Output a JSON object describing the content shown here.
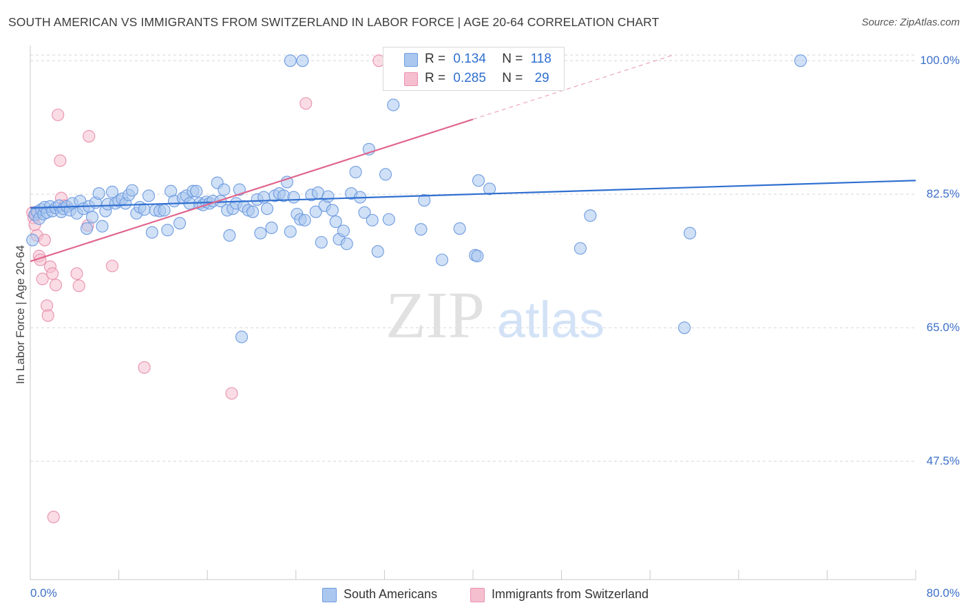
{
  "title": "SOUTH AMERICAN VS IMMIGRANTS FROM SWITZERLAND IN LABOR FORCE | AGE 20-64 CORRELATION CHART",
  "source": "Source: ZipAtlas.com",
  "watermark": {
    "zip": "ZIP",
    "atlas": "atlas"
  },
  "legend_top": {
    "rows": [
      {
        "r_label": "R =",
        "r_value": "0.134",
        "n_label": "N =",
        "n_value": "118",
        "color": "#a9c6f0"
      },
      {
        "r_label": "R =",
        "r_value": "0.285",
        "n_label": "N =",
        "n_value": "29",
        "color": "#f6b6c8"
      }
    ]
  },
  "legend_bottom": {
    "south_americans": "South Americans",
    "immigrants_switzerland": "Immigrants from Switzerland"
  },
  "colors": {
    "blue_fill": "#aac7ef",
    "blue_stroke": "#6d9be0",
    "blue_line": "#2f6fd0",
    "pink_fill": "#f6bfd0",
    "pink_stroke": "#e890ad",
    "pink_line": "#e0668c",
    "grid": "#d5d5d5",
    "tick_text": "#3b6fc8"
  },
  "chart_data": {
    "type": "scatter",
    "title": "SOUTH AMERICAN VS IMMIGRANTS FROM SWITZERLAND IN LABOR FORCE | AGE 20-64 CORRELATION CHART",
    "xlabel": "",
    "ylabel": "In Labor Force | Age 20-64",
    "xlim": [
      0,
      80
    ],
    "ylim": [
      32,
      102
    ],
    "x_tick_labels": [
      "0.0%",
      "80.0%"
    ],
    "y_ticks": [
      47.5,
      65.0,
      82.5,
      100.0
    ],
    "y_tick_labels": [
      "47.5%",
      "65.0%",
      "82.5%",
      "100.0%"
    ],
    "grid": true,
    "legend_position": "bottom",
    "series": [
      {
        "name": "South Americans",
        "r": 0.134,
        "n": 118,
        "trend": {
          "x": [
            0,
            80
          ],
          "y": [
            80.7,
            84.3
          ],
          "dashed_after": null
        },
        "points": [
          [
            0.2,
            76.5
          ],
          [
            0.4,
            79.8
          ],
          [
            0.6,
            80.2
          ],
          [
            0.8,
            79.3
          ],
          [
            1.0,
            80.5
          ],
          [
            1.2,
            79.9
          ],
          [
            1.3,
            80.8
          ],
          [
            1.5,
            80.1
          ],
          [
            1.8,
            80.9
          ],
          [
            2.0,
            80.3
          ],
          [
            2.3,
            80.7
          ],
          [
            2.6,
            81.0
          ],
          [
            2.8,
            80.2
          ],
          [
            3.0,
            80.6
          ],
          [
            3.3,
            80.9
          ],
          [
            3.6,
            80.4
          ],
          [
            3.8,
            81.3
          ],
          [
            4.2,
            80.0
          ],
          [
            4.5,
            81.6
          ],
          [
            4.8,
            80.6
          ],
          [
            5.1,
            78.0
          ],
          [
            5.3,
            80.9
          ],
          [
            5.6,
            79.5
          ],
          [
            5.9,
            81.4
          ],
          [
            6.2,
            82.6
          ],
          [
            6.5,
            78.3
          ],
          [
            6.8,
            80.3
          ],
          [
            7.0,
            81.2
          ],
          [
            7.4,
            82.8
          ],
          [
            7.7,
            81.3
          ],
          [
            8.0,
            81.6
          ],
          [
            8.3,
            81.9
          ],
          [
            8.6,
            81.3
          ],
          [
            8.9,
            82.4
          ],
          [
            9.2,
            83.0
          ],
          [
            9.6,
            80.0
          ],
          [
            9.9,
            80.8
          ],
          [
            10.3,
            80.5
          ],
          [
            10.7,
            82.3
          ],
          [
            11.0,
            77.5
          ],
          [
            11.3,
            80.4
          ],
          [
            11.7,
            80.3
          ],
          [
            12.1,
            80.4
          ],
          [
            12.4,
            77.8
          ],
          [
            12.7,
            82.9
          ],
          [
            13.0,
            81.6
          ],
          [
            13.5,
            78.7
          ],
          [
            13.8,
            82.0
          ],
          [
            14.1,
            82.3
          ],
          [
            14.4,
            81.3
          ],
          [
            14.7,
            82.9
          ],
          [
            15.0,
            82.9
          ],
          [
            15.3,
            81.3
          ],
          [
            15.6,
            81.1
          ],
          [
            15.9,
            81.5
          ],
          [
            16.2,
            81.3
          ],
          [
            16.5,
            81.6
          ],
          [
            16.9,
            84.0
          ],
          [
            17.2,
            81.6
          ],
          [
            17.5,
            83.1
          ],
          [
            17.8,
            80.4
          ],
          [
            18.0,
            77.1
          ],
          [
            18.3,
            80.6
          ],
          [
            18.6,
            81.3
          ],
          [
            18.9,
            83.1
          ],
          [
            19.3,
            80.9
          ],
          [
            19.7,
            80.4
          ],
          [
            20.1,
            80.2
          ],
          [
            20.5,
            81.8
          ],
          [
            20.8,
            77.4
          ],
          [
            21.1,
            82.1
          ],
          [
            21.4,
            80.6
          ],
          [
            21.8,
            78.1
          ],
          [
            22.1,
            82.3
          ],
          [
            22.5,
            82.6
          ],
          [
            22.9,
            82.3
          ],
          [
            23.2,
            84.1
          ],
          [
            23.5,
            77.6
          ],
          [
            23.8,
            82.1
          ],
          [
            24.1,
            79.9
          ],
          [
            24.4,
            79.2
          ],
          [
            24.8,
            79.1
          ],
          [
            25.4,
            82.4
          ],
          [
            25.8,
            80.2
          ],
          [
            26.0,
            82.7
          ],
          [
            26.3,
            76.2
          ],
          [
            26.6,
            81.0
          ],
          [
            26.9,
            82.2
          ],
          [
            27.3,
            80.4
          ],
          [
            27.6,
            78.9
          ],
          [
            27.9,
            76.6
          ],
          [
            28.3,
            77.7
          ],
          [
            28.6,
            76.0
          ],
          [
            29.0,
            82.6
          ],
          [
            29.4,
            85.4
          ],
          [
            29.8,
            82.1
          ],
          [
            30.2,
            80.1
          ],
          [
            30.6,
            88.4
          ],
          [
            30.9,
            79.1
          ],
          [
            31.4,
            75.0
          ],
          [
            32.1,
            85.1
          ],
          [
            32.4,
            79.2
          ],
          [
            32.8,
            94.2
          ],
          [
            35.6,
            81.7
          ],
          [
            35.3,
            77.9
          ],
          [
            37.2,
            73.9
          ],
          [
            38.8,
            78.0
          ],
          [
            40.5,
            84.3
          ],
          [
            40.2,
            74.5
          ],
          [
            40.4,
            74.4
          ],
          [
            41.5,
            83.2
          ],
          [
            49.7,
            75.4
          ],
          [
            50.6,
            79.7
          ],
          [
            59.6,
            77.4
          ],
          [
            59.1,
            65.0
          ],
          [
            24.6,
            100.0
          ],
          [
            32.8,
            100.0
          ],
          [
            69.6,
            100.0
          ],
          [
            19.1,
            63.8
          ],
          [
            23.5,
            100.0
          ]
        ]
      },
      {
        "name": "Immigrants from Switzerland",
        "r": 0.285,
        "n": 29,
        "trend": {
          "x": [
            0,
            58
          ],
          "y": [
            73.7,
            100.7
          ],
          "dashed_after": 40
        },
        "points": [
          [
            0.2,
            80.1
          ],
          [
            0.3,
            79.4
          ],
          [
            0.4,
            78.5
          ],
          [
            0.5,
            79.8
          ],
          [
            0.6,
            77.1
          ],
          [
            0.8,
            74.4
          ],
          [
            0.9,
            73.9
          ],
          [
            1.1,
            71.4
          ],
          [
            1.3,
            76.5
          ],
          [
            1.5,
            67.9
          ],
          [
            1.6,
            66.6
          ],
          [
            1.8,
            73.0
          ],
          [
            2.0,
            72.1
          ],
          [
            2.3,
            70.6
          ],
          [
            2.5,
            92.9
          ],
          [
            2.7,
            86.9
          ],
          [
            2.8,
            82.0
          ],
          [
            3.1,
            81.0
          ],
          [
            4.2,
            72.1
          ],
          [
            4.4,
            70.5
          ],
          [
            5.2,
            78.4
          ],
          [
            5.3,
            90.1
          ],
          [
            7.4,
            73.1
          ],
          [
            10.3,
            59.8
          ],
          [
            18.2,
            56.4
          ],
          [
            24.9,
            94.4
          ],
          [
            31.5,
            100.0
          ],
          [
            33.4,
            100.0
          ],
          [
            2.1,
            40.2
          ]
        ]
      }
    ]
  }
}
